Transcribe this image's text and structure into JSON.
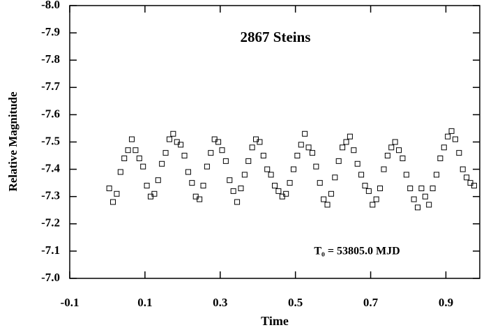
{
  "chart_data": {
    "type": "scatter",
    "title": "2867 Steins",
    "annotation": "T₀ = 53805.0 MJD",
    "x_label": "Time",
    "y_label": "Relative Magnitude",
    "xlim": [
      -0.1,
      0.99
    ],
    "ylim": [
      -7.0,
      -8.0
    ],
    "xticks": [
      -0.1,
      0.1,
      0.3,
      0.5,
      0.7,
      0.9
    ],
    "yticks": [
      {
        "value": -8.0,
        "label": "-8.0"
      },
      -7.9,
      -7.8,
      -7.7,
      -7.6,
      -7.5,
      -7.4,
      -7.3,
      -7.2,
      -7.1,
      {
        "value": -7.0,
        "label": "-7.0"
      }
    ],
    "marker": "square",
    "color": "#000000",
    "x": [
      0.005,
      0.015,
      0.025,
      0.035,
      0.045,
      0.055,
      0.065,
      0.075,
      0.085,
      0.095,
      0.105,
      0.115,
      0.125,
      0.135,
      0.145,
      0.155,
      0.165,
      0.175,
      0.185,
      0.195,
      0.205,
      0.215,
      0.225,
      0.235,
      0.245,
      0.255,
      0.265,
      0.275,
      0.285,
      0.295,
      0.305,
      0.315,
      0.325,
      0.335,
      0.345,
      0.355,
      0.365,
      0.375,
      0.385,
      0.395,
      0.405,
      0.415,
      0.425,
      0.435,
      0.445,
      0.455,
      0.465,
      0.475,
      0.485,
      0.495,
      0.505,
      0.515,
      0.525,
      0.535,
      0.545,
      0.555,
      0.565,
      0.575,
      0.585,
      0.595,
      0.605,
      0.615,
      0.625,
      0.635,
      0.645,
      0.655,
      0.665,
      0.675,
      0.685,
      0.695,
      0.705,
      0.715,
      0.725,
      0.735,
      0.745,
      0.755,
      0.765,
      0.775,
      0.785,
      0.795,
      0.805,
      0.815,
      0.825,
      0.835,
      0.845,
      0.855,
      0.865,
      0.875,
      0.885,
      0.895,
      0.905,
      0.915,
      0.925,
      0.935,
      0.945,
      0.955,
      0.965,
      0.975
    ],
    "y": [
      -7.33,
      -7.28,
      -7.31,
      -7.39,
      -7.44,
      -7.47,
      -7.51,
      -7.47,
      -7.44,
      -7.41,
      -7.34,
      -7.3,
      -7.31,
      -7.36,
      -7.42,
      -7.46,
      -7.51,
      -7.53,
      -7.5,
      -7.49,
      -7.45,
      -7.39,
      -7.35,
      -7.3,
      -7.29,
      -7.34,
      -7.41,
      -7.46,
      -7.51,
      -7.5,
      -7.47,
      -7.43,
      -7.36,
      -7.32,
      -7.28,
      -7.33,
      -7.38,
      -7.43,
      -7.48,
      -7.51,
      -7.5,
      -7.45,
      -7.4,
      -7.38,
      -7.34,
      -7.32,
      -7.3,
      -7.31,
      -7.35,
      -7.4,
      -7.45,
      -7.49,
      -7.53,
      -7.48,
      -7.46,
      -7.41,
      -7.35,
      -7.29,
      -7.27,
      -7.31,
      -7.37,
      -7.43,
      -7.48,
      -7.5,
      -7.52,
      -7.47,
      -7.42,
      -7.38,
      -7.34,
      -7.32,
      -7.27,
      -7.29,
      -7.33,
      -7.4,
      -7.45,
      -7.48,
      -7.5,
      -7.47,
      -7.44,
      -7.38,
      -7.33,
      -7.29,
      -7.26,
      -7.33,
      -7.3,
      -7.27,
      -7.33,
      -7.38,
      -7.44,
      -7.48,
      -7.52,
      -7.54,
      -7.51,
      -7.46,
      -7.4,
      -7.37,
      -7.35,
      -7.34
    ]
  }
}
